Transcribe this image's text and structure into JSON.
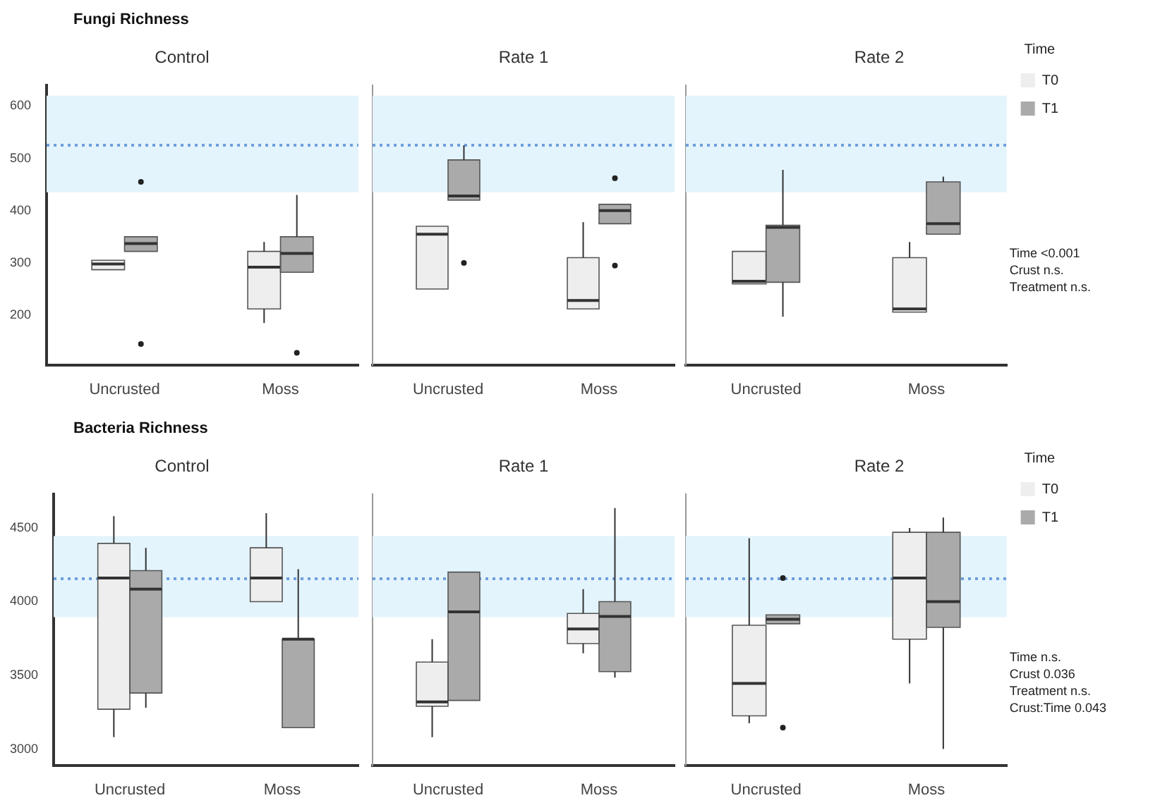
{
  "chart_data": [
    {
      "type": "box",
      "title": "Fungi Richness",
      "subtitle": "Control",
      "categories": [
        "Uncrusted",
        "Moss"
      ],
      "ylim": [
        105,
        640
      ],
      "yticks": [
        200,
        300,
        400,
        500,
        600
      ],
      "series": [
        {
          "color": "#eeeeee",
          "boxes": [
            {
              "low": 287,
              "q1": 287,
              "median": 298,
              "q3": 305,
              "high": 305
            },
            {
              "low": 185,
              "q1": 212,
              "median": 292,
              "q3": 322,
              "high": 340
            }
          ]
        },
        {
          "color": "#aaaaaa",
          "boxes": [
            {
              "low": 322,
              "q1": 322,
              "median": 337,
              "q3": 350,
              "high": 350,
              "outliers": [
                455,
                145
              ]
            },
            {
              "low": 282,
              "q1": 282,
              "median": 318,
              "q3": 350,
              "high": 430,
              "outliers": [
                128
              ]
            }
          ]
        }
      ],
      "ref_lines": [
        {
          "axis": "y",
          "value": 525,
          "color": "#6f9fdc",
          "line_style": "dotted"
        }
      ],
      "bands": [
        {
          "axis": "y",
          "from": 435,
          "to": 620,
          "color": "#e3f4fc"
        }
      ]
    },
    {
      "type": "box",
      "subtitle": "Rate 1",
      "categories": [
        "Uncrusted",
        "Moss"
      ],
      "ylim": [
        105,
        640
      ],
      "yticks": [
        200,
        300,
        400,
        500,
        600
      ],
      "tick_labels": "x",
      "series": [
        {
          "color": "#eeeeee",
          "boxes": [
            {
              "low": 250,
              "q1": 250,
              "median": 355,
              "q3": 370,
              "high": 370
            },
            {
              "low": 212,
              "q1": 212,
              "median": 228,
              "q3": 310,
              "high": 378
            }
          ]
        },
        {
          "color": "#aaaaaa",
          "boxes": [
            {
              "low": 420,
              "q1": 420,
              "median": 428,
              "q3": 497,
              "high": 525,
              "outliers": [
                300
              ]
            },
            {
              "low": 375,
              "q1": 375,
              "median": 400,
              "q3": 412,
              "high": 412,
              "outliers": [
                462,
                295
              ]
            }
          ]
        }
      ],
      "ref_lines": [
        {
          "axis": "y",
          "value": 525,
          "color": "#6f9fdc",
          "line_style": "dotted"
        }
      ],
      "bands": [
        {
          "axis": "y",
          "from": 435,
          "to": 620,
          "color": "#e3f4fc"
        }
      ]
    },
    {
      "type": "box",
      "subtitle": "Rate 2",
      "categories": [
        "Uncrusted",
        "Moss"
      ],
      "ylim": [
        105,
        640
      ],
      "yticks": [
        200,
        300,
        400,
        500,
        600
      ],
      "tick_labels": "x",
      "legend": "top right",
      "legend_title": "Time",
      "annotations": [
        "Time <0.001",
        "Crust n.s.",
        "Treatment n.s."
      ],
      "series": [
        {
          "name": "T0",
          "color": "#eeeeee",
          "boxes": [
            {
              "low": 260,
              "q1": 260,
              "median": 265,
              "q3": 322,
              "high": 322
            },
            {
              "low": 206,
              "q1": 206,
              "median": 212,
              "q3": 310,
              "high": 340
            }
          ]
        },
        {
          "name": "T1",
          "color": "#aaaaaa",
          "boxes": [
            {
              "low": 197,
              "q1": 263,
              "median": 368,
              "q3": 372,
              "high": 478
            },
            {
              "low": 355,
              "q1": 355,
              "median": 375,
              "q3": 455,
              "high": 465
            }
          ]
        }
      ],
      "ref_lines": [
        {
          "axis": "y",
          "value": 525,
          "color": "#6f9fdc",
          "line_style": "dotted"
        }
      ],
      "bands": [
        {
          "axis": "y",
          "from": 435,
          "to": 620,
          "color": "#e3f4fc"
        }
      ]
    },
    {
      "type": "box",
      "title": "Bacteria Richness",
      "subtitle": "Control",
      "categories": [
        "Uncrusted",
        "Moss"
      ],
      "ylim": [
        2890,
        4730
      ],
      "yticks": [
        3000,
        3500,
        4000,
        4500
      ],
      "series": [
        {
          "color": "#eeeeee",
          "boxes": [
            {
              "low": 3080,
              "q1": 3270,
              "median": 4160,
              "q3": 4395,
              "high": 4580
            },
            {
              "low": 4000,
              "q1": 4000,
              "median": 4160,
              "q3": 4365,
              "high": 4600
            }
          ]
        },
        {
          "color": "#aaaaaa",
          "boxes": [
            {
              "low": 3280,
              "q1": 3380,
              "median": 4085,
              "q3": 4210,
              "high": 4365
            },
            {
              "low": 3145,
              "q1": 3145,
              "median": 3745,
              "q3": 3745,
              "high": 4220
            }
          ]
        }
      ],
      "ref_lines": [
        {
          "axis": "y",
          "value": 4155,
          "color": "#6f9fdc",
          "line_style": "dotted"
        }
      ],
      "bands": [
        {
          "axis": "y",
          "from": 3895,
          "to": 4445,
          "color": "#e3f4fc"
        }
      ]
    },
    {
      "type": "box",
      "subtitle": "Rate 1",
      "categories": [
        "Uncrusted",
        "Moss"
      ],
      "ylim": [
        2890,
        4730
      ],
      "yticks": [
        3000,
        3500,
        4000,
        4500
      ],
      "tick_labels": "x",
      "series": [
        {
          "color": "#eeeeee",
          "boxes": [
            {
              "low": 3080,
              "q1": 3290,
              "median": 3320,
              "q3": 3590,
              "high": 3745
            },
            {
              "low": 3650,
              "q1": 3715,
              "median": 3815,
              "q3": 3920,
              "high": 4085
            }
          ]
        },
        {
          "color": "#aaaaaa",
          "boxes": [
            {
              "low": 3330,
              "q1": 3330,
              "median": 3930,
              "q3": 4200,
              "high": 4200
            },
            {
              "low": 3485,
              "q1": 3525,
              "median": 3900,
              "q3": 4000,
              "high": 4635
            }
          ]
        }
      ],
      "ref_lines": [
        {
          "axis": "y",
          "value": 4155,
          "color": "#6f9fdc",
          "line_style": "dotted"
        }
      ],
      "bands": [
        {
          "axis": "y",
          "from": 3895,
          "to": 4445,
          "color": "#e3f4fc"
        }
      ]
    },
    {
      "type": "box",
      "subtitle": "Rate 2",
      "categories": [
        "Uncrusted",
        "Moss"
      ],
      "ylim": [
        2890,
        4730
      ],
      "yticks": [
        3000,
        3500,
        4000,
        4500
      ],
      "tick_labels": "x",
      "legend": "top right",
      "legend_title": "Time",
      "annotations": [
        "Time n.s.",
        "Crust 0.036",
        "Treatment n.s.",
        "Crust:Time 0.043"
      ],
      "series": [
        {
          "name": "T0",
          "color": "#eeeeee",
          "boxes": [
            {
              "low": 3175,
              "q1": 3225,
              "median": 3445,
              "q3": 3840,
              "high": 4430
            },
            {
              "low": 3445,
              "q1": 3745,
              "median": 4160,
              "q3": 4470,
              "high": 4500
            }
          ]
        },
        {
          "name": "T1",
          "color": "#aaaaaa",
          "boxes": [
            {
              "low": 3850,
              "q1": 3850,
              "median": 3880,
              "q3": 3910,
              "high": 3910,
              "outliers": [
                4160,
                3145
              ]
            },
            {
              "low": 3000,
              "q1": 3825,
              "median": 4000,
              "q3": 4470,
              "high": 4570
            }
          ]
        }
      ],
      "ref_lines": [
        {
          "axis": "y",
          "value": 4155,
          "color": "#6f9fdc",
          "line_style": "dotted"
        }
      ],
      "bands": [
        {
          "axis": "y",
          "from": 3895,
          "to": 4445,
          "color": "#e3f4fc"
        }
      ]
    }
  ]
}
